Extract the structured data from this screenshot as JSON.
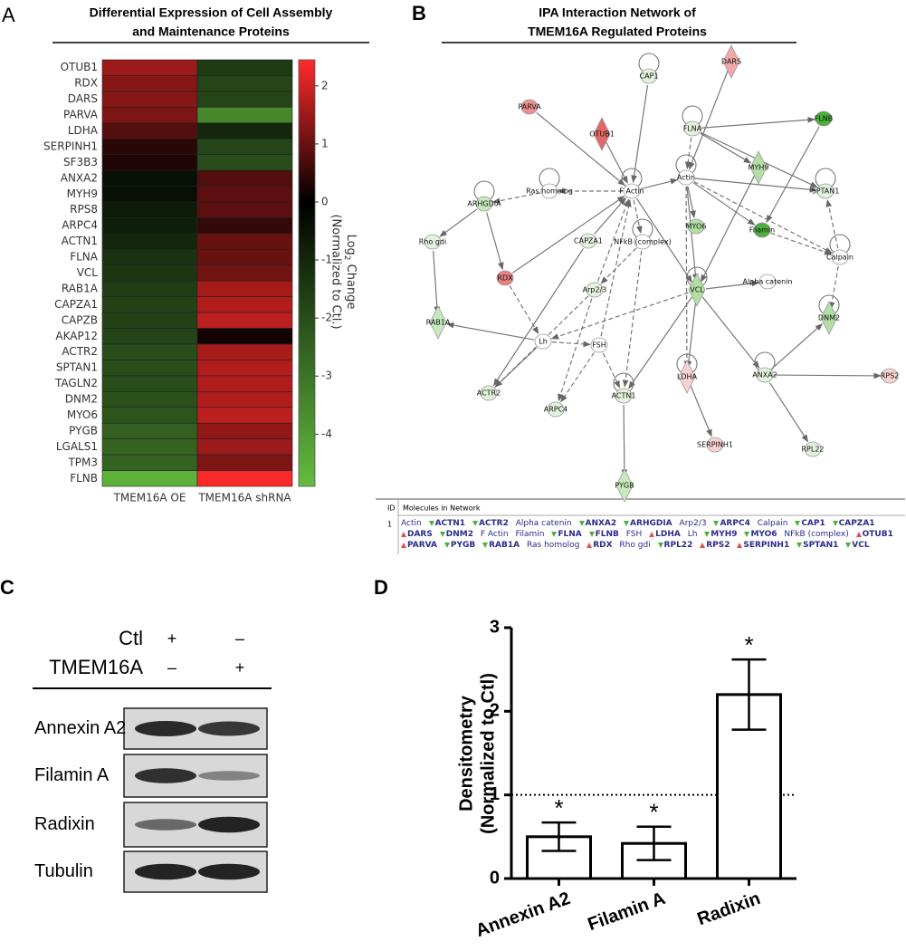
{
  "panel_labels": [
    "A",
    "B",
    "C",
    "D"
  ],
  "chart_data": [
    {
      "type": "heatmap",
      "title": [
        "Differential Expression of Cell Assembly",
        "and Maintenance Proteins"
      ],
      "categories": [
        "OTUB1",
        "RDX",
        "DARS",
        "PARVA",
        "LDHA",
        "SERPINH1",
        "SF3B3",
        "ANXA2",
        "MYH9",
        "RPS8",
        "ARPC4",
        "ACTN1",
        "FLNA",
        "VCL",
        "RAB1A",
        "CAPZA1",
        "CAPZB",
        "AKAP12",
        "ACTR2",
        "SPTAN1",
        "TAGLN2",
        "DNM2",
        "MYO6",
        "PYGB",
        "LGALS1",
        "TPM3",
        "FLNB"
      ],
      "series": [
        {
          "name": "TMEM16A OE",
          "values": [
            1.5,
            1.3,
            1.3,
            1.2,
            0.8,
            0.4,
            0.3,
            -0.4,
            -0.4,
            -0.7,
            -0.8,
            -1.0,
            -1.3,
            -1.4,
            -1.6,
            -1.7,
            -1.7,
            -1.8,
            -2.0,
            -2.0,
            -2.0,
            -2.1,
            -2.2,
            -2.5,
            -2.6,
            -2.6,
            -4.6
          ]
        },
        {
          "name": "TMEM16A shRNA",
          "values": [
            -1.5,
            -1.8,
            -1.8,
            -3.5,
            -1.0,
            -1.8,
            -2.0,
            0.8,
            0.9,
            0.9,
            0.5,
            1.0,
            1.0,
            1.1,
            1.6,
            1.7,
            1.8,
            0.2,
            1.6,
            1.7,
            1.7,
            1.7,
            1.8,
            1.4,
            1.5,
            1.2,
            2.4
          ]
        }
      ],
      "colormap": [
        "#63bd3f",
        "#000000",
        "#ff2a2a"
      ],
      "clim": [
        -4.9,
        2.45
      ],
      "cticks": [
        2,
        1,
        0,
        -1,
        -2,
        -3,
        -4
      ],
      "colorbar_label": {
        "base": "Log",
        "subscript": "2",
        "rest": " Change",
        "line2": "(Normalized to Ctl.)"
      }
    },
    {
      "type": "bar",
      "categories": [
        "Annexin A2",
        "Filamin A",
        "Radixin"
      ],
      "values": [
        0.5,
        0.42,
        2.2
      ],
      "errors": [
        0.17,
        0.2,
        0.42
      ],
      "annotations": [
        "*",
        "*",
        "*"
      ],
      "ylabel": [
        "Densitometry",
        "(Normalized to Ctl)"
      ],
      "ylim": [
        0,
        3
      ],
      "yticks": [
        0,
        1,
        2,
        3
      ],
      "reference_line": 1,
      "color": "#ffffff"
    }
  ],
  "network": {
    "title": [
      "IPA Interaction Network of",
      "TMEM16A Regulated Proteins"
    ],
    "nodes": [
      {
        "label": "CAP1",
        "shape": "circle",
        "color": "#e2f2dc"
      },
      {
        "label": "DARS",
        "shape": "diamond",
        "color": "#f2a8a8"
      },
      {
        "label": "PARVA",
        "shape": "circle",
        "color": "#ee9090"
      },
      {
        "label": "OTUB1",
        "shape": "diamond",
        "color": "#e26868"
      },
      {
        "label": "FLNA",
        "shape": "circle",
        "color": "#e2f2dc"
      },
      {
        "label": "FLNB",
        "shape": "circle",
        "color": "#4cae3c"
      },
      {
        "label": "MYH9",
        "shape": "diamond",
        "color": "#b3dfa5"
      },
      {
        "label": "Ras homolog",
        "shape": "circle",
        "color": "#ffffff"
      },
      {
        "label": "F Actin",
        "shape": "circle",
        "color": "#ffffff"
      },
      {
        "label": "Actin",
        "shape": "circle",
        "color": "#ffffff"
      },
      {
        "label": "SPTAN1",
        "shape": "circle",
        "color": "#e2f2dc"
      },
      {
        "label": "ARHGDIA",
        "shape": "circle",
        "color": "#c8e8bd"
      },
      {
        "label": "MYO6",
        "shape": "circle",
        "color": "#b3dfa5"
      },
      {
        "label": "Filamin",
        "shape": "circle",
        "color": "#4cae3c"
      },
      {
        "label": "NFkB (complex)",
        "shape": "circle",
        "color": "#ffffff"
      },
      {
        "label": "CAPZA1",
        "shape": "circle",
        "color": "#e2f2dc"
      },
      {
        "label": "Rho gdi",
        "shape": "circle",
        "color": "#e2f2dc"
      },
      {
        "label": "Calpain",
        "shape": "circle",
        "color": "#ffffff"
      },
      {
        "label": "RDX",
        "shape": "circle",
        "color": "#e88080"
      },
      {
        "label": "Arp2/3",
        "shape": "circle",
        "color": "#e2f2dc"
      },
      {
        "label": "VCL",
        "shape": "diamond",
        "color": "#b3dfa5"
      },
      {
        "label": "Alpha catenin",
        "shape": "circle",
        "color": "#ffffff"
      },
      {
        "label": "DNM2",
        "shape": "diamond",
        "color": "#b3dfa5"
      },
      {
        "label": "RAB1A",
        "shape": "diamond",
        "color": "#c8e8bd"
      },
      {
        "label": "Lh",
        "shape": "circle",
        "color": "#ffffff"
      },
      {
        "label": "FSH",
        "shape": "circle",
        "color": "#ffffff"
      },
      {
        "label": "LDHA",
        "shape": "diamond",
        "color": "#f8d2d2"
      },
      {
        "label": "ANXA2",
        "shape": "circle",
        "color": "#e2f2dc"
      },
      {
        "label": "RPS2",
        "shape": "circle",
        "color": "#f8d2d2"
      },
      {
        "label": "ACTR2",
        "shape": "circle",
        "color": "#e2f2dc"
      },
      {
        "label": "ACTN1",
        "shape": "circle",
        "color": "#e2f2dc"
      },
      {
        "label": "ARPC4",
        "shape": "circle",
        "color": "#e2f2dc"
      },
      {
        "label": "SERPINH1",
        "shape": "circle",
        "color": "#f8d2d2"
      },
      {
        "label": "RPL22",
        "shape": "circle",
        "color": "#e2f2dc"
      },
      {
        "label": "PYGB",
        "shape": "diamond",
        "color": "#c8e8bd"
      }
    ],
    "table": {
      "id_header": "ID",
      "header": "Molecules in Network",
      "row_id": "1"
    },
    "molecules": [
      {
        "name": "Actin",
        "mark": null
      },
      {
        "name": "ACTN1",
        "mark": "down"
      },
      {
        "name": "ACTR2",
        "mark": "down"
      },
      {
        "name": "Alpha catenin",
        "mark": null
      },
      {
        "name": "ANXA2",
        "mark": "down"
      },
      {
        "name": "ARHGDIA",
        "mark": "down"
      },
      {
        "name": "Arp2/3",
        "mark": null
      },
      {
        "name": "ARPC4",
        "mark": "down"
      },
      {
        "name": "Calpain",
        "mark": null
      },
      {
        "name": "CAP1",
        "mark": "down"
      },
      {
        "name": "CAPZA1",
        "mark": "down"
      },
      {
        "name": "DARS",
        "mark": "up"
      },
      {
        "name": "DNM2",
        "mark": "down"
      },
      {
        "name": "F Actin",
        "mark": null
      },
      {
        "name": "Filamin",
        "mark": null
      },
      {
        "name": "FLNA",
        "mark": "down"
      },
      {
        "name": "FLNB",
        "mark": "down"
      },
      {
        "name": "FSH",
        "mark": null
      },
      {
        "name": "LDHA",
        "mark": "up"
      },
      {
        "name": "Lh",
        "mark": null
      },
      {
        "name": "MYH9",
        "mark": "down"
      },
      {
        "name": "MYO6",
        "mark": "down"
      },
      {
        "name": "NFkB (complex)",
        "mark": null
      },
      {
        "name": "OTUB1",
        "mark": "up"
      },
      {
        "name": "PARVA",
        "mark": "up"
      },
      {
        "name": "PYGB",
        "mark": "down"
      },
      {
        "name": "RAB1A",
        "mark": "down"
      },
      {
        "name": "Ras homolog",
        "mark": null
      },
      {
        "name": "RDX",
        "mark": "up"
      },
      {
        "name": "Rho gdi",
        "mark": null
      },
      {
        "name": "RPL22",
        "mark": "down"
      },
      {
        "name": "RPS2",
        "mark": "up"
      },
      {
        "name": "SERPINH1",
        "mark": "up"
      },
      {
        "name": "SPTAN1",
        "mark": "down"
      },
      {
        "name": "VCL",
        "mark": "down"
      }
    ]
  },
  "blot": {
    "conditions": [
      {
        "label": "Ctl",
        "lanes": [
          "+",
          "–"
        ]
      },
      {
        "label": "TMEM16A",
        "lanes": [
          "–",
          "+"
        ]
      }
    ],
    "bands": [
      "Annexin A2",
      "Filamin A",
      "Radixin",
      "Tubulin"
    ]
  }
}
